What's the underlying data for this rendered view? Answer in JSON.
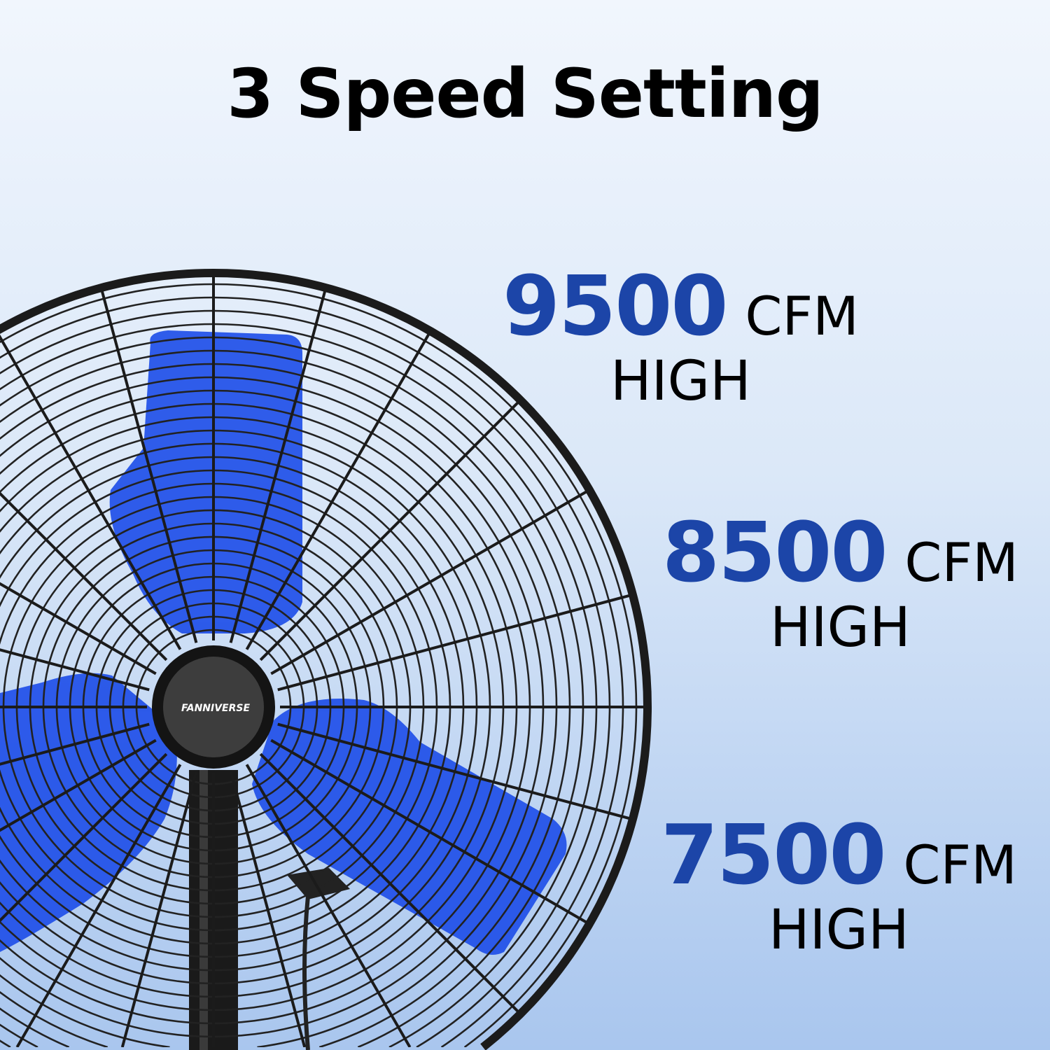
{
  "title": "3 Speed Setting",
  "brand": "FANNIVERSE",
  "colors": {
    "accent_number": "#1c45a8",
    "blade": "#1f4fe8",
    "grille": "#1b1b1b"
  },
  "speeds": [
    {
      "value": "9500",
      "unit": "CFM",
      "level": "HIGH"
    },
    {
      "value": "8500",
      "unit": "CFM",
      "level": "HIGH"
    },
    {
      "value": "7500",
      "unit": "CFM",
      "level": "HIGH"
    }
  ]
}
